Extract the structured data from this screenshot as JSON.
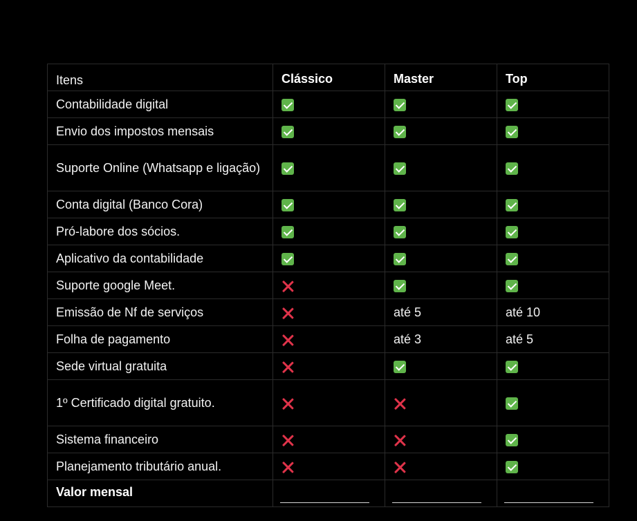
{
  "table": {
    "header": {
      "label": "Itens",
      "plans": [
        "Clássico",
        "Master",
        "Top"
      ]
    },
    "rows": [
      {
        "label": "Contabilidade digital",
        "values": [
          {
            "type": "check"
          },
          {
            "type": "check"
          },
          {
            "type": "check"
          }
        ]
      },
      {
        "label": "Envio dos impostos mensais",
        "values": [
          {
            "type": "check"
          },
          {
            "type": "check"
          },
          {
            "type": "check"
          }
        ]
      },
      {
        "label": "Suporte Online (Whatsapp e ligação)",
        "values": [
          {
            "type": "check"
          },
          {
            "type": "check"
          },
          {
            "type": "check"
          }
        ]
      },
      {
        "label": "Conta digital (Banco Cora)",
        "values": [
          {
            "type": "check"
          },
          {
            "type": "check"
          },
          {
            "type": "check"
          }
        ]
      },
      {
        "label": "Pró-labore dos sócios.",
        "values": [
          {
            "type": "check"
          },
          {
            "type": "check"
          },
          {
            "type": "check"
          }
        ]
      },
      {
        "label": "Aplicativo da contabilidade",
        "values": [
          {
            "type": "check"
          },
          {
            "type": "check"
          },
          {
            "type": "check"
          }
        ]
      },
      {
        "label": "Suporte google Meet.",
        "values": [
          {
            "type": "cross"
          },
          {
            "type": "check"
          },
          {
            "type": "check"
          }
        ]
      },
      {
        "label": "Emissão de Nf de serviços",
        "values": [
          {
            "type": "cross"
          },
          {
            "type": "text",
            "text": "até 5"
          },
          {
            "type": "text",
            "text": "até 10"
          }
        ]
      },
      {
        "label": "Folha de pagamento",
        "values": [
          {
            "type": "cross"
          },
          {
            "type": "text",
            "text": "até 3"
          },
          {
            "type": "text",
            "text": "até 5"
          }
        ]
      },
      {
        "label": "Sede virtual gratuita",
        "values": [
          {
            "type": "cross"
          },
          {
            "type": "check"
          },
          {
            "type": "check"
          }
        ]
      },
      {
        "label": "1º Certificado digital gratuito.",
        "values": [
          {
            "type": "cross"
          },
          {
            "type": "cross"
          },
          {
            "type": "check"
          }
        ]
      },
      {
        "label": "Sistema financeiro",
        "values": [
          {
            "type": "cross"
          },
          {
            "type": "cross"
          },
          {
            "type": "check"
          }
        ]
      },
      {
        "label": "Planejamento tributário anual.",
        "values": [
          {
            "type": "cross"
          },
          {
            "type": "cross"
          },
          {
            "type": "check"
          }
        ]
      }
    ],
    "footer": {
      "label": "Valor mensal",
      "values": [
        {
          "type": "blank"
        },
        {
          "type": "blank"
        },
        {
          "type": "blank"
        }
      ]
    }
  },
  "icons": {
    "check": "check-mark-icon",
    "cross": "cross-mark-icon"
  },
  "colors": {
    "background": "#000000",
    "check": "#5fb44a",
    "cross": "#e0334a",
    "border": "#2b2b2b"
  }
}
